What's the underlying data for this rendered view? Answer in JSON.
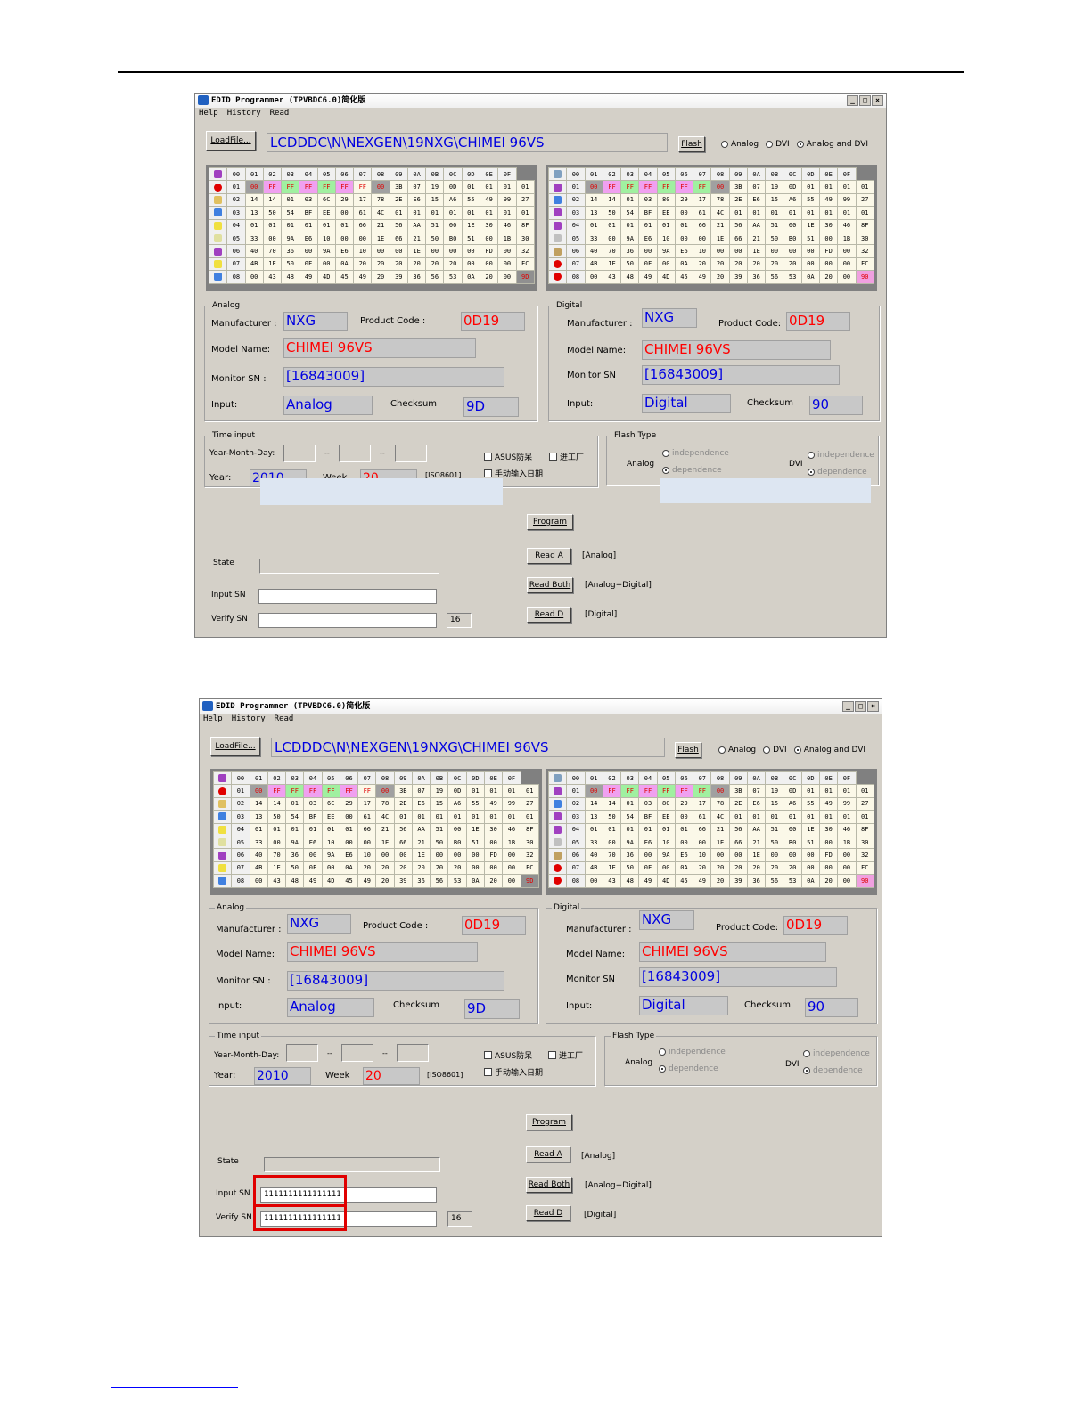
{
  "win_title": "EDID Programmer (TPVBDC6.0)简化版",
  "menu": [
    "Help",
    "History",
    "Read"
  ],
  "load_label": "LoadFile...",
  "path": "LCDDDC\\N\\NEXGEN\\19NXG\\CHIMEI 96VS",
  "flash_label": "Flash",
  "radio_opts": [
    "Analog",
    "DVI",
    "Analog and DVI"
  ],
  "win_btns": [
    "_",
    "□",
    "×"
  ],
  "cols": [
    "00",
    "01",
    "02",
    "03",
    "04",
    "05",
    "06",
    "07",
    "08",
    "09",
    "0A",
    "0B",
    "0C",
    "0D",
    "0E",
    "0F"
  ],
  "rows": [
    "01",
    "02",
    "03",
    "04",
    "05",
    "06",
    "07",
    "08"
  ],
  "analog_hex": [
    [
      "00",
      "FF",
      "FF",
      "FF",
      "FF",
      "FF",
      "FF",
      "00",
      "3B",
      "07",
      "19",
      "0D",
      "01",
      "01",
      "01",
      "01"
    ],
    [
      "14",
      "14",
      "01",
      "03",
      "6C",
      "29",
      "17",
      "78",
      "2E",
      "E6",
      "15",
      "A6",
      "55",
      "49",
      "99",
      "27"
    ],
    [
      "13",
      "50",
      "54",
      "BF",
      "EE",
      "00",
      "61",
      "4C",
      "01",
      "01",
      "01",
      "01",
      "01",
      "01",
      "01",
      "01"
    ],
    [
      "01",
      "01",
      "01",
      "01",
      "01",
      "01",
      "66",
      "21",
      "56",
      "AA",
      "51",
      "00",
      "1E",
      "30",
      "46",
      "8F"
    ],
    [
      "33",
      "00",
      "9A",
      "E6",
      "10",
      "00",
      "00",
      "1E",
      "66",
      "21",
      "50",
      "B0",
      "51",
      "00",
      "1B",
      "30"
    ],
    [
      "40",
      "70",
      "36",
      "00",
      "9A",
      "E6",
      "10",
      "00",
      "00",
      "1E",
      "00",
      "00",
      "00",
      "FD",
      "00",
      "32"
    ],
    [
      "4B",
      "1E",
      "50",
      "0F",
      "00",
      "0A",
      "20",
      "20",
      "20",
      "20",
      "20",
      "20",
      "00",
      "00",
      "00",
      "FC"
    ],
    [
      "00",
      "43",
      "48",
      "49",
      "4D",
      "45",
      "49",
      "20",
      "39",
      "36",
      "56",
      "53",
      "0A",
      "20",
      "00",
      "9D"
    ]
  ],
  "digital_hex": [
    [
      "00",
      "FF",
      "FF",
      "FF",
      "FF",
      "FF",
      "FF",
      "00",
      "3B",
      "07",
      "19",
      "0D",
      "01",
      "01",
      "01",
      "01"
    ],
    [
      "14",
      "14",
      "01",
      "03",
      "80",
      "29",
      "17",
      "78",
      "2E",
      "E6",
      "15",
      "A6",
      "55",
      "49",
      "99",
      "27"
    ],
    [
      "13",
      "50",
      "54",
      "BF",
      "EE",
      "00",
      "61",
      "4C",
      "01",
      "01",
      "01",
      "01",
      "01",
      "01",
      "01",
      "01"
    ],
    [
      "01",
      "01",
      "01",
      "01",
      "01",
      "01",
      "66",
      "21",
      "56",
      "AA",
      "51",
      "00",
      "1E",
      "30",
      "46",
      "8F"
    ],
    [
      "33",
      "00",
      "9A",
      "E6",
      "10",
      "00",
      "00",
      "1E",
      "66",
      "21",
      "50",
      "B0",
      "51",
      "00",
      "1B",
      "30"
    ],
    [
      "40",
      "70",
      "36",
      "00",
      "9A",
      "E6",
      "10",
      "00",
      "00",
      "1E",
      "00",
      "00",
      "00",
      "FD",
      "00",
      "32"
    ],
    [
      "4B",
      "1E",
      "50",
      "0F",
      "00",
      "0A",
      "20",
      "20",
      "20",
      "20",
      "20",
      "20",
      "00",
      "00",
      "00",
      "FC"
    ],
    [
      "00",
      "43",
      "48",
      "49",
      "4D",
      "45",
      "49",
      "20",
      "39",
      "36",
      "56",
      "53",
      "0A",
      "20",
      "00",
      "90"
    ]
  ],
  "analog": {
    "legend": "Analog",
    "mfr_label": "Manufacturer :",
    "mfr": "NXG",
    "pc_label": "Product Code :",
    "pc": "0D19",
    "model_label": "Model Name:",
    "model": "CHIMEI 96VS",
    "sn_label": "Monitor SN :",
    "sn": "[16843009]",
    "input_label": "Input:",
    "input": "Analog",
    "cs_label": "Checksum",
    "cs": "9D"
  },
  "digital": {
    "legend": "Digital",
    "mfr_label": "Manufacturer :",
    "mfr": "NXG",
    "pc_label": "Product Code:",
    "pc": "0D19",
    "model_label": "Model Name:",
    "model": "CHIMEI 96VS",
    "sn_label": "Monitor SN",
    "sn": "[16843009]",
    "input_label": "Input:",
    "input": "Digital",
    "cs_label": "Checksum",
    "cs": "90"
  },
  "time": {
    "legend": "Time input",
    "ymd_label": "Year-Month-Day:",
    "dash": "--",
    "year_label": "Year:",
    "year": "2010",
    "week_label": "Week",
    "week": "20",
    "iso": "[ISO8601]",
    "cb_asus": "ASUS防呆",
    "cb_jin": "进工厂",
    "cb_manual": "手动输入日期"
  },
  "flash_type": {
    "legend": "Flash Type",
    "analog": "Analog",
    "dvi": "DVI",
    "indep": "independence",
    "dep": "dependence"
  },
  "program_label": "Program",
  "reada_label": "Read A",
  "reada_note": "[Analog]",
  "readboth_label": "Read Both",
  "readboth_note": "[Analog+Digital]",
  "readd_label": "Read D",
  "readd_note": "[Digital]",
  "state_label": "State",
  "inputsn_label": "Input SN",
  "verifysn_label": "Verify SN",
  "sn_len": "16",
  "shot2_sn": "1111111111111111"
}
